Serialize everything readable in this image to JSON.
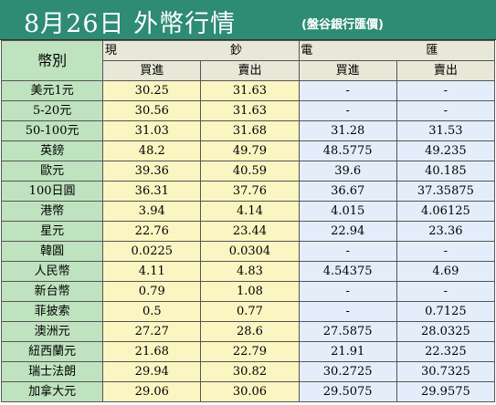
{
  "title": "8月26日 外幣行情",
  "source": "(盤谷銀行匯價)",
  "header": {
    "currency": "幣別",
    "cash": "現 鈔",
    "wire": "電 匯",
    "buy": "買進",
    "sell": "賣出"
  },
  "rows": [
    {
      "name": "美元1元",
      "cash_buy": "30.25",
      "cash_sell": "31.63",
      "wire_buy": "-",
      "wire_sell": "-"
    },
    {
      "name": "5-20元",
      "cash_buy": "30.56",
      "cash_sell": "31.63",
      "wire_buy": "-",
      "wire_sell": "-"
    },
    {
      "name": "50-100元",
      "cash_buy": "31.03",
      "cash_sell": "31.68",
      "wire_buy": "31.28",
      "wire_sell": "31.53"
    },
    {
      "name": "英鎊",
      "cash_buy": "48.2",
      "cash_sell": "49.79",
      "wire_buy": "48.5775",
      "wire_sell": "49.235"
    },
    {
      "name": "歐元",
      "cash_buy": "39.36",
      "cash_sell": "40.59",
      "wire_buy": "39.6",
      "wire_sell": "40.185"
    },
    {
      "name": "100日圓",
      "cash_buy": "36.31",
      "cash_sell": "37.76",
      "wire_buy": "36.67",
      "wire_sell": "37.35875"
    },
    {
      "name": "港幣",
      "cash_buy": "3.94",
      "cash_sell": "4.14",
      "wire_buy": "4.015",
      "wire_sell": "4.06125"
    },
    {
      "name": "星元",
      "cash_buy": "22.76",
      "cash_sell": "23.44",
      "wire_buy": "22.94",
      "wire_sell": "23.36"
    },
    {
      "name": "韓圓",
      "cash_buy": "0.0225",
      "cash_sell": "0.0304",
      "wire_buy": "-",
      "wire_sell": "-"
    },
    {
      "name": "人民幣",
      "cash_buy": "4.11",
      "cash_sell": "4.83",
      "wire_buy": "4.54375",
      "wire_sell": "4.69"
    },
    {
      "name": "新台幣",
      "cash_buy": "0.79",
      "cash_sell": "1.08",
      "wire_buy": "-",
      "wire_sell": "-"
    },
    {
      "name": "菲披索",
      "cash_buy": "0.5",
      "cash_sell": "0.77",
      "wire_buy": "-",
      "wire_sell": "0.7125"
    },
    {
      "name": "澳洲元",
      "cash_buy": "27.27",
      "cash_sell": "28.6",
      "wire_buy": "27.5875",
      "wire_sell": "28.0325"
    },
    {
      "name": "紐西蘭元",
      "cash_buy": "21.68",
      "cash_sell": "22.79",
      "wire_buy": "21.91",
      "wire_sell": "22.325"
    },
    {
      "name": "瑞士法朗",
      "cash_buy": "29.94",
      "cash_sell": "30.82",
      "wire_buy": "30.2725",
      "wire_sell": "30.7325"
    },
    {
      "name": "加拿大元",
      "cash_buy": "29.06",
      "cash_sell": "30.06",
      "wire_buy": "29.5075",
      "wire_sell": "29.9575"
    }
  ],
  "colors": {
    "title_bg": "#2e8b74",
    "name_bg": "#bfe3bf",
    "cash_bg": "#fbf5c2",
    "wire_bg": "#e4eefa"
  }
}
